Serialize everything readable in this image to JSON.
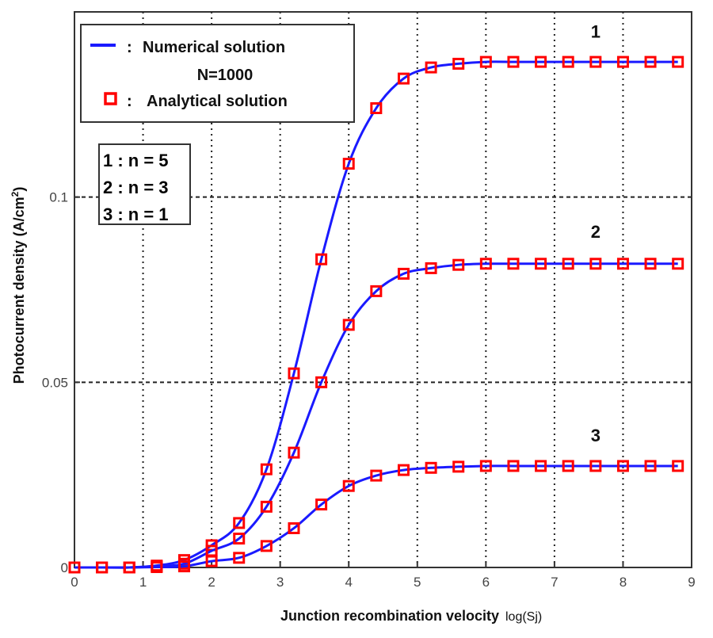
{
  "chart_data": {
    "type": "line",
    "xlabel": "Junction recombination velocity",
    "xlabel_suffix": "log(Sj)",
    "ylabel": "Photocurrent density (A/cm",
    "ylabel_sup": "2",
    "ylabel_close": ")",
    "xlim": [
      0,
      9
    ],
    "ylim": [
      0,
      0.15
    ],
    "xticks": [
      0,
      1,
      2,
      3,
      4,
      5,
      6,
      7,
      8,
      9
    ],
    "xtick_labels": [
      "0",
      "1",
      "2",
      "3",
      "4",
      "5",
      "6",
      "7",
      "8",
      "9"
    ],
    "yticks": [
      0,
      0.05,
      0.1
    ],
    "ytick_labels": [
      "0",
      "0.05",
      "0.1"
    ],
    "grid": true,
    "x": [
      0,
      0.4,
      0.8,
      1.2,
      1.6,
      2.0,
      2.4,
      2.8,
      3.2,
      3.6,
      4.0,
      4.4,
      4.8,
      5.2,
      5.6,
      6.0,
      6.4,
      6.8,
      7.2,
      7.6,
      8.0,
      8.4,
      8.8
    ],
    "series": [
      {
        "name": "1",
        "label": "1",
        "label_at": [
          7.6,
          0.143
        ],
        "values": [
          0,
          0,
          0,
          0.0005,
          0.002,
          0.006,
          0.012,
          0.0265,
          0.0524,
          0.0832,
          0.109,
          0.124,
          0.132,
          0.135,
          0.136,
          0.1365,
          0.1365,
          0.1365,
          0.1365,
          0.1365,
          0.1365,
          0.1365,
          0.1365
        ]
      },
      {
        "name": "2",
        "label": "2",
        "label_at": [
          7.6,
          0.089
        ],
        "values": [
          0,
          0,
          0,
          0.0003,
          0.001,
          0.0045,
          0.0078,
          0.0164,
          0.031,
          0.05,
          0.0655,
          0.0746,
          0.0793,
          0.0808,
          0.0817,
          0.082,
          0.082,
          0.082,
          0.082,
          0.082,
          0.082,
          0.082,
          0.082
        ]
      },
      {
        "name": "3",
        "label": "3",
        "label_at": [
          7.6,
          0.034
        ],
        "values": [
          0,
          0,
          0,
          0.0001,
          0.0003,
          0.0017,
          0.0026,
          0.0058,
          0.0106,
          0.017,
          0.022,
          0.0248,
          0.0263,
          0.0269,
          0.0272,
          0.0274,
          0.0274,
          0.0274,
          0.0274,
          0.0274,
          0.0274,
          0.0274,
          0.0274
        ]
      }
    ],
    "legend": {
      "placement": "top-left",
      "line_label": "Numerical solution",
      "line_sub": "N=1000",
      "marker_label": "Analytical solution",
      "separator": ":"
    },
    "annotation_box": [
      "1 : n = 5",
      "2 : n = 3",
      "3 : n = 1"
    ],
    "colors": {
      "line": "#1a1aff",
      "marker": "#ff0000"
    }
  }
}
